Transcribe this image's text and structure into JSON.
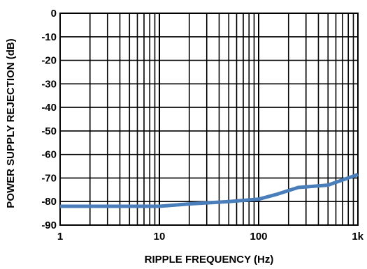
{
  "chart_data": {
    "type": "line",
    "title": "",
    "xlabel": "RIPPLE FREQUENCY (Hz)",
    "ylabel": "POWER SUPPLY REJECTION (dB)",
    "x_scale": "log",
    "xlim": [
      1,
      1000
    ],
    "ylim": [
      -90,
      0
    ],
    "grid": true,
    "x_tick_labels": [
      {
        "value": 1,
        "label": "1"
      },
      {
        "value": 10,
        "label": "10"
      },
      {
        "value": 100,
        "label": "100"
      },
      {
        "value": 1000,
        "label": "1k"
      }
    ],
    "y_tick_labels": [
      {
        "value": 0,
        "label": "0"
      },
      {
        "value": -10,
        "label": "-10"
      },
      {
        "value": -20,
        "label": "-20"
      },
      {
        "value": -30,
        "label": "-30"
      },
      {
        "value": -40,
        "label": "-40"
      },
      {
        "value": -50,
        "label": "-50"
      },
      {
        "value": -60,
        "label": "-60"
      },
      {
        "value": -70,
        "label": "-70"
      },
      {
        "value": -80,
        "label": "-80"
      },
      {
        "value": -90,
        "label": "-90"
      }
    ],
    "series": [
      {
        "color": "#4a7ebb",
        "x": [
          1,
          2,
          5,
          10,
          20,
          50,
          100,
          150,
          250,
          500,
          1000
        ],
        "y": [
          -82,
          -82,
          -82,
          -82,
          -81,
          -80,
          -79,
          -77,
          -74,
          -73,
          -68.5
        ]
      }
    ]
  },
  "colors": {
    "grid": "#000000",
    "series": "#4a7ebb"
  }
}
